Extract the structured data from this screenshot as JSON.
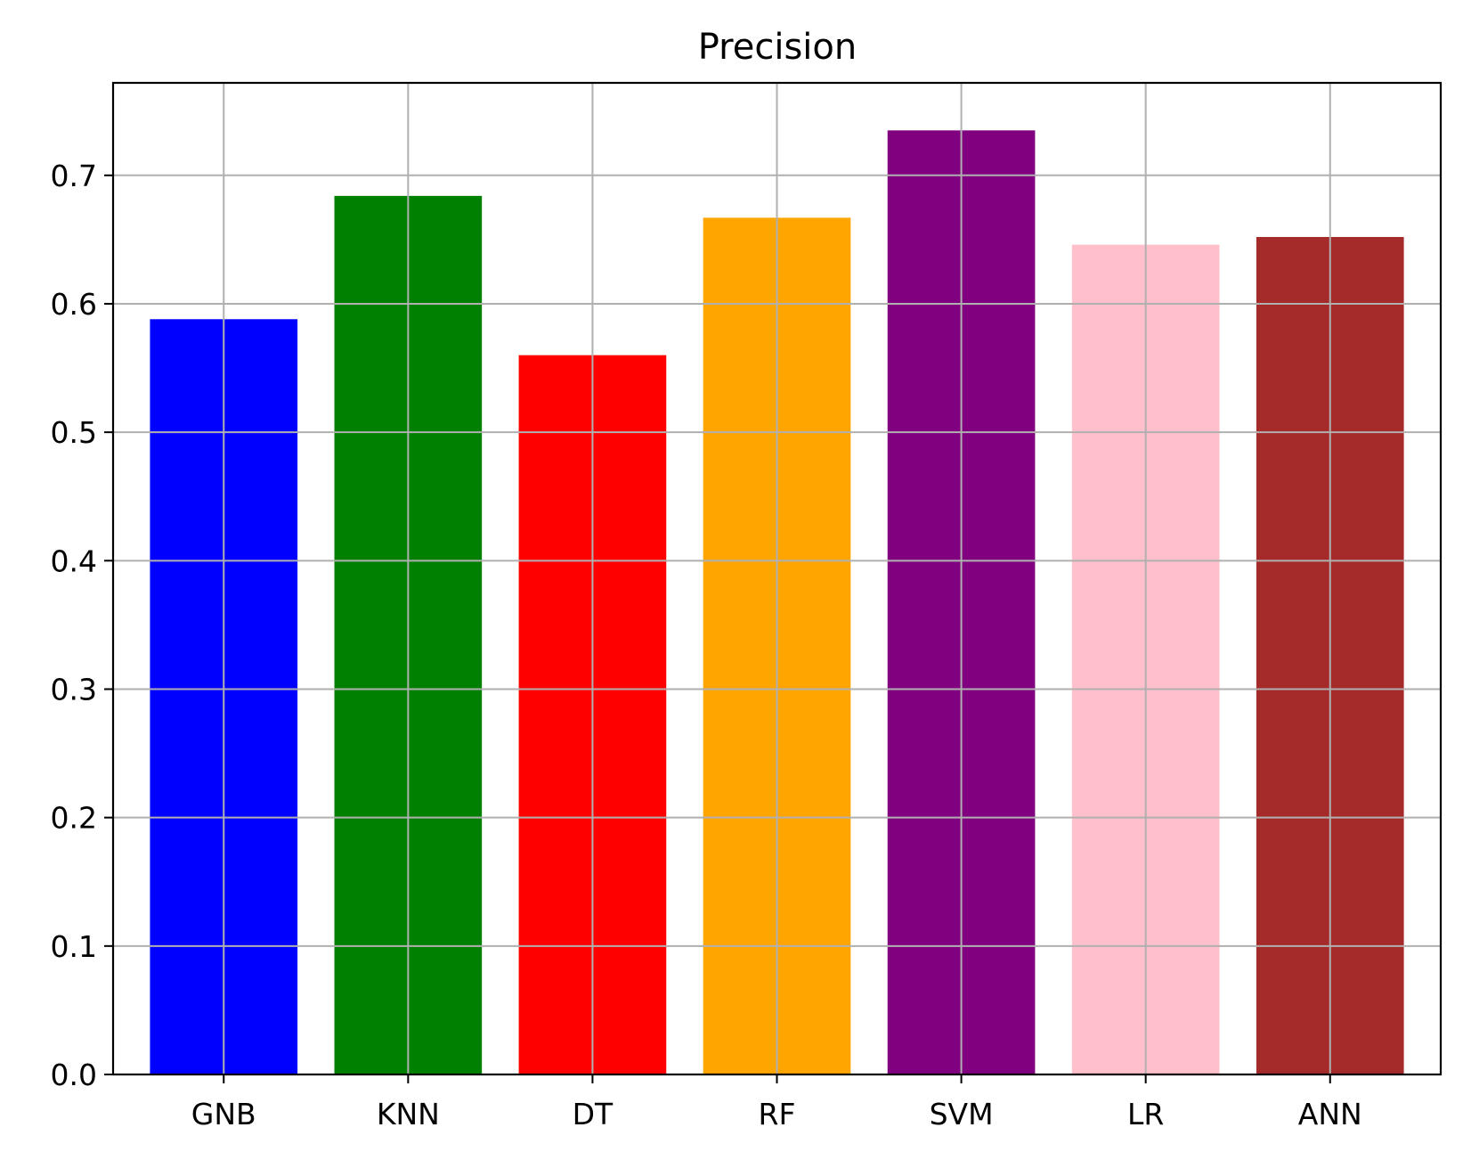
{
  "chart_data": {
    "type": "bar",
    "title": "Precision",
    "xlabel": "",
    "ylabel": "",
    "categories": [
      "GNB",
      "KNN",
      "DT",
      "RF",
      "SVM",
      "LR",
      "ANN"
    ],
    "values": [
      0.588,
      0.684,
      0.56,
      0.667,
      0.735,
      0.646,
      0.652
    ],
    "colors": [
      "#0000ff",
      "#008000",
      "#ff0000",
      "#ffa500",
      "#800080",
      "#ffc0cb",
      "#a52a2a"
    ],
    "ylim": [
      0,
      0.772
    ],
    "yticks": [
      0.0,
      0.1,
      0.2,
      0.3,
      0.4,
      0.5,
      0.6,
      0.7
    ],
    "ytick_labels": [
      "0.0",
      "0.1",
      "0.2",
      "0.3",
      "0.4",
      "0.5",
      "0.6",
      "0.7"
    ],
    "grid": true,
    "legend": "none"
  }
}
